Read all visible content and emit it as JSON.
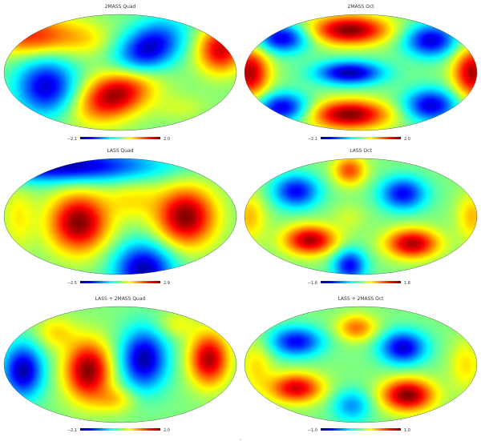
{
  "figure": {
    "colormap": "jet",
    "colormap_stops": [
      "#00007f",
      "#0000ff",
      "#007fff",
      "#00ffff",
      "#7fff7f",
      "#ffff00",
      "#ff7f00",
      "#ff0000",
      "#7f0000"
    ],
    "background": "#ffffff",
    "projection": "mollweide",
    "footer_mark": ","
  },
  "panels": [
    {
      "id": "panel-1",
      "title": "2MASS Quad",
      "colorbar": {
        "min_label": "−2.1",
        "max_label": "2.0"
      },
      "blobs": [
        {
          "u": 0.62,
          "v": 0.3,
          "su": 0.09,
          "sv": 0.17,
          "amp": -1.2,
          "rot": 0.3
        },
        {
          "u": 0.18,
          "v": 0.62,
          "su": 0.09,
          "sv": 0.17,
          "amp": -1.1,
          "rot": 0.0
        },
        {
          "u": 0.48,
          "v": 0.68,
          "su": 0.1,
          "sv": 0.17,
          "amp": 1.3,
          "rot": 0.4
        },
        {
          "u": 0.12,
          "v": 0.18,
          "su": 0.15,
          "sv": 0.12,
          "amp": 0.9,
          "rot": 0.0
        },
        {
          "u": 0.93,
          "v": 0.3,
          "su": 0.07,
          "sv": 0.14,
          "amp": 1.1,
          "rot": 0.0
        },
        {
          "u": 0.36,
          "v": 0.22,
          "su": 0.07,
          "sv": 0.1,
          "amp": 0.2,
          "rot": 0.0
        },
        {
          "u": 0.76,
          "v": 0.8,
          "su": 0.08,
          "sv": 0.08,
          "amp": 0.2,
          "rot": 0.0
        }
      ]
    },
    {
      "id": "panel-2",
      "title": "2MASS Oct",
      "colorbar": {
        "min_label": "−2.1",
        "max_label": "2.0"
      },
      "blobs": [
        {
          "u": 0.45,
          "v": 0.13,
          "su": 0.12,
          "sv": 0.09,
          "amp": 1.3,
          "rot": 0.0
        },
        {
          "u": 0.45,
          "v": 0.86,
          "su": 0.12,
          "sv": 0.09,
          "amp": 1.3,
          "rot": 0.0
        },
        {
          "u": 0.45,
          "v": 0.5,
          "su": 0.1,
          "sv": 0.07,
          "amp": -1.2,
          "rot": 0.0
        },
        {
          "u": 0.02,
          "v": 0.5,
          "su": 0.06,
          "sv": 0.16,
          "amp": 1.2,
          "rot": 0.0
        },
        {
          "u": 0.98,
          "v": 0.5,
          "su": 0.06,
          "sv": 0.16,
          "amp": 1.2,
          "rot": 0.0
        },
        {
          "u": 0.16,
          "v": 0.2,
          "su": 0.08,
          "sv": 0.09,
          "amp": -1.1,
          "rot": 0.0
        },
        {
          "u": 0.16,
          "v": 0.8,
          "su": 0.08,
          "sv": 0.09,
          "amp": -1.1,
          "rot": 0.0
        },
        {
          "u": 0.8,
          "v": 0.22,
          "su": 0.08,
          "sv": 0.1,
          "amp": -1.1,
          "rot": 0.0
        },
        {
          "u": 0.8,
          "v": 0.78,
          "su": 0.08,
          "sv": 0.1,
          "amp": -1.1,
          "rot": 0.0
        }
      ]
    },
    {
      "id": "panel-3",
      "title": "LASS Quad",
      "colorbar": {
        "min_label": "−2.5",
        "max_label": "2.9"
      },
      "blobs": [
        {
          "u": 0.32,
          "v": 0.55,
          "su": 0.09,
          "sv": 0.18,
          "amp": 1.3,
          "rot": 0.0
        },
        {
          "u": 0.78,
          "v": 0.5,
          "su": 0.09,
          "sv": 0.18,
          "amp": 1.3,
          "rot": 0.0
        },
        {
          "u": 0.25,
          "v": 0.06,
          "su": 0.28,
          "sv": 0.1,
          "amp": -1.2,
          "rot": 0.0
        },
        {
          "u": 0.6,
          "v": 0.95,
          "su": 0.09,
          "sv": 0.16,
          "amp": -1.2,
          "rot": 0.0
        },
        {
          "u": 0.06,
          "v": 0.5,
          "su": 0.05,
          "sv": 0.2,
          "amp": 0.35,
          "rot": 0.0
        },
        {
          "u": 0.55,
          "v": 0.35,
          "su": 0.08,
          "sv": 0.12,
          "amp": 0.35,
          "rot": 0.0
        }
      ]
    },
    {
      "id": "panel-4",
      "title": "LASS Oct",
      "colorbar": {
        "min_label": "−1.6",
        "max_label": "1.8"
      },
      "blobs": [
        {
          "u": 0.22,
          "v": 0.28,
          "su": 0.07,
          "sv": 0.1,
          "amp": -1.0,
          "rot": 0.0
        },
        {
          "u": 0.68,
          "v": 0.3,
          "su": 0.07,
          "sv": 0.1,
          "amp": -1.0,
          "rot": 0.0
        },
        {
          "u": 0.28,
          "v": 0.7,
          "su": 0.08,
          "sv": 0.09,
          "amp": 1.2,
          "rot": 0.0
        },
        {
          "u": 0.72,
          "v": 0.73,
          "su": 0.08,
          "sv": 0.09,
          "amp": 1.2,
          "rot": 0.0
        },
        {
          "u": 0.45,
          "v": 0.92,
          "su": 0.05,
          "sv": 0.1,
          "amp": -1.0,
          "rot": 0.0
        },
        {
          "u": 0.45,
          "v": 0.1,
          "su": 0.05,
          "sv": 0.09,
          "amp": 0.8,
          "rot": 0.0
        },
        {
          "u": 0.02,
          "v": 0.5,
          "su": 0.05,
          "sv": 0.15,
          "amp": 0.5,
          "rot": 0.0
        },
        {
          "u": 0.98,
          "v": 0.5,
          "su": 0.05,
          "sv": 0.15,
          "amp": 0.5,
          "rot": 0.0
        },
        {
          "u": 0.45,
          "v": 0.5,
          "su": 0.05,
          "sv": 0.08,
          "amp": 0.2,
          "rot": 0.0
        }
      ]
    },
    {
      "id": "panel-5",
      "title": "LASS + 2MASS Quad",
      "colorbar": {
        "min_label": "−2.1",
        "max_label": "2.0"
      },
      "blobs": [
        {
          "u": 0.08,
          "v": 0.55,
          "su": 0.06,
          "sv": 0.16,
          "amp": -1.2,
          "rot": 0.0
        },
        {
          "u": 0.36,
          "v": 0.55,
          "su": 0.07,
          "sv": 0.18,
          "amp": 1.3,
          "rot": 0.0
        },
        {
          "u": 0.6,
          "v": 0.45,
          "su": 0.07,
          "sv": 0.18,
          "amp": -1.2,
          "rot": 0.0
        },
        {
          "u": 0.88,
          "v": 0.45,
          "su": 0.06,
          "sv": 0.16,
          "amp": 1.2,
          "rot": 0.0
        },
        {
          "u": 0.22,
          "v": 0.22,
          "su": 0.06,
          "sv": 0.1,
          "amp": 0.4,
          "rot": 0.0
        },
        {
          "u": 0.48,
          "v": 0.8,
          "su": 0.06,
          "sv": 0.08,
          "amp": 0.4,
          "rot": 0.0
        },
        {
          "u": 0.74,
          "v": 0.15,
          "su": 0.06,
          "sv": 0.08,
          "amp": 0.3,
          "rot": 0.0
        }
      ]
    },
    {
      "id": "panel-6",
      "title": "LASS + 2MASS Oct",
      "colorbar": {
        "min_label": "−1.0",
        "max_label": "1.0"
      },
      "blobs": [
        {
          "u": 0.22,
          "v": 0.3,
          "su": 0.08,
          "sv": 0.09,
          "amp": -1.0,
          "rot": 0.0
        },
        {
          "u": 0.22,
          "v": 0.7,
          "su": 0.08,
          "sv": 0.09,
          "amp": 1.1,
          "rot": 0.0
        },
        {
          "u": 0.68,
          "v": 0.35,
          "su": 0.07,
          "sv": 0.1,
          "amp": -1.1,
          "rot": 0.0
        },
        {
          "u": 0.7,
          "v": 0.76,
          "su": 0.08,
          "sv": 0.1,
          "amp": 1.3,
          "rot": 0.0
        },
        {
          "u": 0.48,
          "v": 0.18,
          "su": 0.06,
          "sv": 0.08,
          "amp": 0.7,
          "rot": 0.0
        },
        {
          "u": 0.46,
          "v": 0.85,
          "su": 0.06,
          "sv": 0.1,
          "amp": -0.6,
          "rot": 0.0
        },
        {
          "u": 0.05,
          "v": 0.5,
          "su": 0.05,
          "sv": 0.16,
          "amp": 0.4,
          "rot": 0.0
        },
        {
          "u": 0.95,
          "v": 0.5,
          "su": 0.05,
          "sv": 0.16,
          "amp": 0.4,
          "rot": 0.0
        }
      ]
    }
  ]
}
